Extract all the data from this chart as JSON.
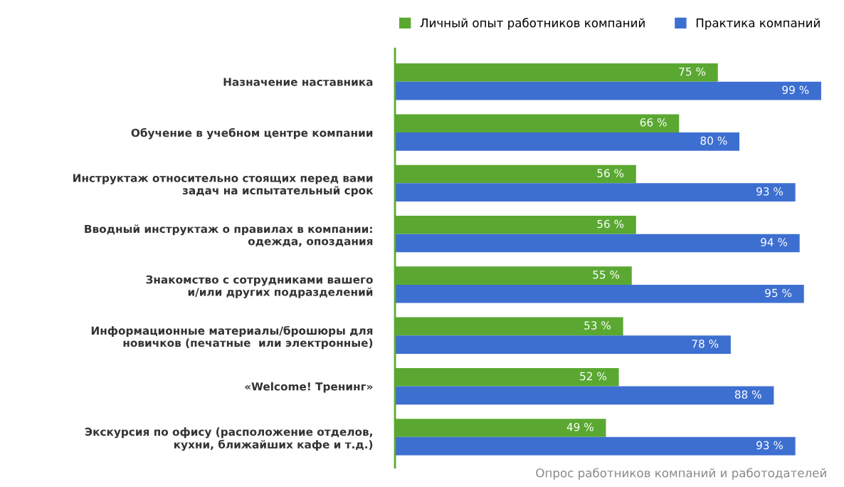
{
  "chart_data": {
    "type": "bar",
    "orientation": "horizontal",
    "categories": [
      "Назначение наставника",
      "Обучение в учебном центре компании",
      "Инструктаж относительно стоящих перед вами\nзадач на испытательный срок",
      "Вводный инструктаж о правилах в компании:\nодежда, опоздания",
      "Знакомство с сотрудниками вашего\nи/или других подразделений",
      "Информационные материалы/брошюры для\nновичков (печатные  или электронные)",
      "«Welcome! Тренинг»",
      "Экскурсия по офису (расположение отделов,\nкухни, ближайших кафе и т.д.)"
    ],
    "series": [
      {
        "name": "Личный опыт работников компаний",
        "color": "#5aa832",
        "values": [
          75,
          66,
          56,
          56,
          55,
          53,
          52,
          49
        ],
        "value_labels": [
          "75 %",
          "66 %",
          "56 %",
          "56 %",
          "55 %",
          "53 %",
          "52 %",
          "49 %"
        ]
      },
      {
        "name": "Практика компаний",
        "color": "#3d6fd0",
        "values": [
          99,
          80,
          93,
          94,
          95,
          78,
          88,
          93
        ],
        "value_labels": [
          "99 %",
          "80 %",
          "93 %",
          "94 %",
          "95 %",
          "78 %",
          "88 %",
          "93 %"
        ]
      }
    ],
    "legend": "top",
    "grid": false,
    "annotations": [
      "Опрос работников компаний и работодателей"
    ]
  }
}
